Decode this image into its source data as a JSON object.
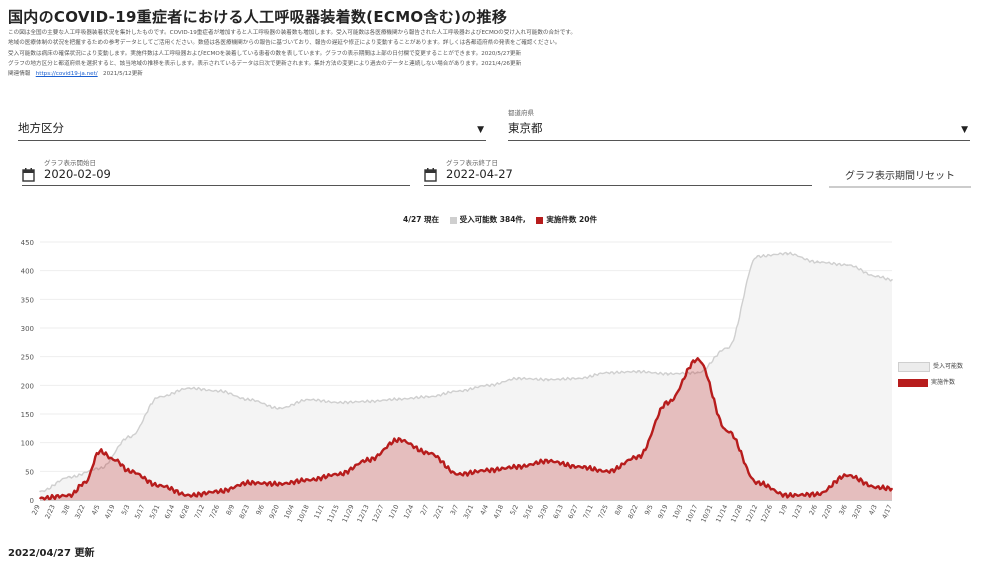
{
  "page": {
    "title": "国内のCOVID-19重症者における人工呼吸器装着数(ECMO含む)の推移",
    "description_lines": [
      "この図は全国の主要な人工呼吸器装着状況を集計したものです。COVID-19重症者が増加すると人工呼吸器の装着数も増加します。受入可能数は各医療機関から報告された人工呼吸器およびECMOの受け入れ可能数の合計です。",
      "地域の医療体制の状況を把握するための参考データとしてご活用ください。数値は各医療機関からの報告に基づいており、報告の遅延や修正により変動することがあります。詳しくは各都道府県の発表をご確認ください。",
      "受入可能数は病床の確保状況により変動します。実施件数は人工呼吸器およびECMOを装着している患者の数を表しています。グラフの表示期間は上部の日付欄で変更することができます。2020/5/27更新",
      "グラフの地方区分と都道府県を選択すると、該当地域の推移を表示します。表示されているデータは日次で更新されます。集計方法の変更により過去のデータと連続しない場合があります。2021/4/26更新"
    ],
    "source_label": "関連情報",
    "source_link": "https://covid19-ja.net/",
    "source_date": "2021/5/12更新",
    "updated": "2022/04/27 更新"
  },
  "controls": {
    "region_label": "地方区分",
    "pref_small": "都道府県",
    "pref_value": "東京都",
    "start_small": "グラフ表示開始日",
    "start_value": "2020-02-09",
    "end_small": "グラフ表示終了日",
    "end_value": "2022-04-27",
    "reset_label": "グラフ表示期間リセット"
  },
  "legend": {
    "as_of": "4/27 現在",
    "capacity_label": "受入可能数 384件,",
    "actual_label": "実施件数 20件",
    "side_capacity": "受入可能数",
    "side_actual": "実施件数",
    "capacity_color": "#cfcfcf",
    "actual_color": "#b71c1c"
  },
  "chart_data": {
    "type": "area",
    "ylim": [
      0,
      450
    ],
    "yticks": [
      0,
      50,
      100,
      150,
      200,
      250,
      300,
      350,
      400,
      450
    ],
    "xlabels": [
      "2/9",
      "2/23",
      "3/8",
      "3/22",
      "4/5",
      "4/19",
      "5/3",
      "5/17",
      "5/31",
      "6/14",
      "6/28",
      "7/12",
      "7/26",
      "8/9",
      "8/23",
      "9/6",
      "9/20",
      "10/4",
      "10/18",
      "11/1",
      "11/15",
      "11/29",
      "12/13",
      "12/27",
      "1/10",
      "1/24",
      "2/7",
      "2/21",
      "3/7",
      "3/21",
      "4/4",
      "4/18",
      "5/2",
      "5/16",
      "5/30",
      "6/13",
      "6/27",
      "7/11",
      "7/25",
      "8/8",
      "8/22",
      "9/5",
      "9/19",
      "10/3",
      "10/17",
      "10/31",
      "11/14",
      "11/28",
      "12/12",
      "12/26",
      "1/9",
      "1/23",
      "2/6",
      "2/20",
      "3/6",
      "3/20",
      "4/3",
      "4/17"
    ],
    "series": [
      {
        "name": "受入可能数",
        "x_index": [
          0,
          2,
          4,
          6,
          8,
          10,
          12,
          14,
          16,
          18,
          20,
          22,
          24,
          26,
          28,
          30,
          32,
          34,
          36,
          38,
          40,
          42,
          44,
          46,
          48,
          50,
          52,
          54,
          56,
          57
        ],
        "values": [
          15,
          40,
          55,
          110,
          180,
          195,
          190,
          175,
          160,
          175,
          170,
          172,
          176,
          180,
          190,
          200,
          212,
          210,
          212,
          222,
          224,
          220,
          222,
          265,
          425,
          430,
          415,
          410,
          390,
          384
        ]
      },
      {
        "name": "実施件数",
        "x_index": [
          0,
          2,
          3,
          4,
          5,
          6,
          8,
          10,
          12,
          14,
          16,
          18,
          20,
          22,
          24,
          26,
          28,
          30,
          32,
          34,
          36,
          38,
          40,
          42,
          44,
          46,
          48,
          50,
          52,
          54,
          56,
          57
        ],
        "values": [
          3,
          8,
          30,
          85,
          70,
          50,
          25,
          8,
          15,
          30,
          28,
          35,
          45,
          70,
          105,
          82,
          45,
          52,
          58,
          68,
          58,
          50,
          75,
          170,
          245,
          120,
          30,
          8,
          10,
          43,
          22,
          20
        ]
      }
    ]
  }
}
